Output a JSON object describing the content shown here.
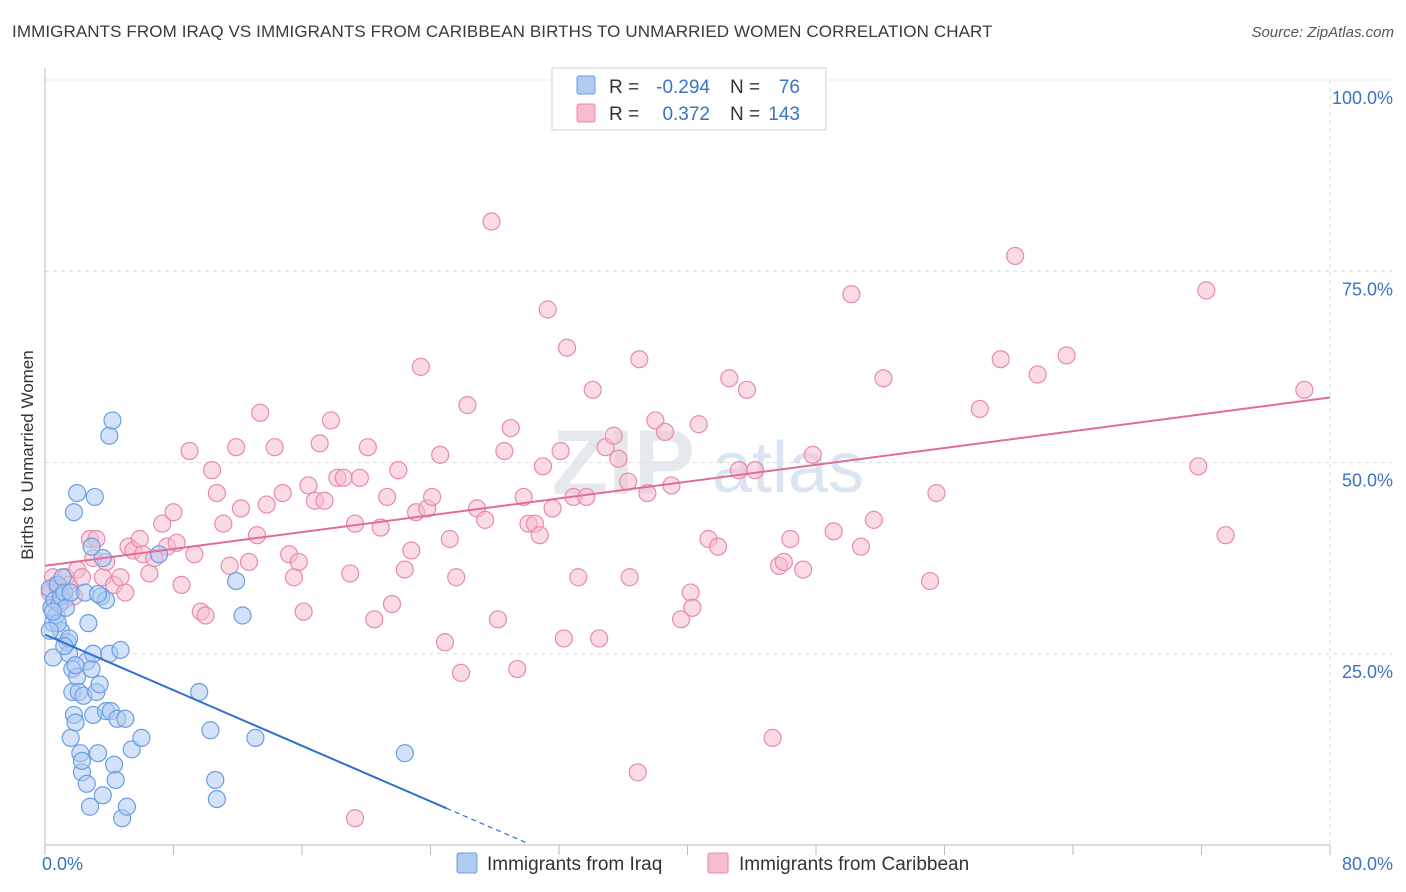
{
  "title": "IMMIGRANTS FROM IRAQ VS IMMIGRANTS FROM CARIBBEAN BIRTHS TO UNMARRIED WOMEN CORRELATION CHART",
  "source": "Source: ZipAtlas.com",
  "watermark": {
    "zip": "ZIP",
    "atlas": "atlas"
  },
  "colors": {
    "iraq_fill": "#aecbf2",
    "iraq_stroke": "#6a9ee0",
    "iraq_line": "#2f6fd0",
    "carib_fill": "#f6bcd0",
    "carib_stroke": "#e98aab",
    "carib_line": "#e06d97",
    "grid": "#dcdcdc",
    "tick_text": "#3a73c4"
  },
  "legend": {
    "rows": [
      {
        "r_label": "R =",
        "r_value": "-0.294",
        "n_label": "N =",
        "n_value": "76"
      },
      {
        "r_label": "R =",
        "r_value": "0.372",
        "n_label": "N =",
        "n_value": "143"
      }
    ]
  },
  "chart_data": {
    "type": "scatter",
    "title": "IMMIGRANTS FROM IRAQ VS IMMIGRANTS FROM CARIBBEAN BIRTHS TO UNMARRIED WOMEN CORRELATION CHART",
    "xlabel": "",
    "ylabel": "Births to Unmarried Women",
    "xlim": [
      0,
      80
    ],
    "ylim": [
      0,
      100
    ],
    "x_tick_labels": [
      "0.0%",
      "80.0%"
    ],
    "y_ticks": [
      25,
      50,
      75,
      100
    ],
    "y_tick_labels": [
      "25.0%",
      "50.0%",
      "75.0%",
      "100.0%"
    ],
    "grid": true,
    "legend_placement": "top-center",
    "series": [
      {
        "name": "Immigrants from Iraq",
        "r": -0.294,
        "n": 76,
        "trend": {
          "x0": 0,
          "y0": 27.5,
          "x1": 25,
          "y1": 4.8,
          "dash_to_x": 30
        },
        "points": [
          [
            0.3,
            33.5
          ],
          [
            0.4,
            31
          ],
          [
            0.5,
            29
          ],
          [
            0.5,
            24.5
          ],
          [
            0.6,
            32
          ],
          [
            0.7,
            30
          ],
          [
            0.8,
            34
          ],
          [
            0.9,
            31.5
          ],
          [
            1.0,
            28
          ],
          [
            1.0,
            32.5
          ],
          [
            1.1,
            35
          ],
          [
            1.2,
            33
          ],
          [
            1.3,
            31
          ],
          [
            1.4,
            26.5
          ],
          [
            1.5,
            25
          ],
          [
            1.5,
            27
          ],
          [
            1.6,
            33
          ],
          [
            1.6,
            14
          ],
          [
            1.7,
            23
          ],
          [
            1.7,
            20
          ],
          [
            1.8,
            43.5
          ],
          [
            1.8,
            17
          ],
          [
            1.9,
            16
          ],
          [
            2.0,
            22
          ],
          [
            2.0,
            46
          ],
          [
            2.1,
            20
          ],
          [
            2.2,
            12
          ],
          [
            2.3,
            9.5
          ],
          [
            2.3,
            11
          ],
          [
            2.4,
            19.5
          ],
          [
            2.5,
            33
          ],
          [
            2.6,
            24
          ],
          [
            2.6,
            8
          ],
          [
            2.7,
            29
          ],
          [
            2.8,
            5
          ],
          [
            2.9,
            23
          ],
          [
            3.0,
            17
          ],
          [
            3.0,
            25
          ],
          [
            3.1,
            45.5
          ],
          [
            3.2,
            20
          ],
          [
            3.3,
            12
          ],
          [
            3.4,
            21
          ],
          [
            3.5,
            32.5
          ],
          [
            3.6,
            6.5
          ],
          [
            3.6,
            37.5
          ],
          [
            3.8,
            32
          ],
          [
            3.8,
            17.5
          ],
          [
            4.0,
            53.5
          ],
          [
            4.0,
            25
          ],
          [
            4.1,
            17.5
          ],
          [
            4.2,
            55.5
          ],
          [
            4.3,
            10.5
          ],
          [
            4.4,
            8.5
          ],
          [
            4.5,
            16.5
          ],
          [
            4.7,
            25.5
          ],
          [
            4.8,
            3.5
          ],
          [
            5.0,
            16.5
          ],
          [
            5.1,
            5
          ],
          [
            5.4,
            12.5
          ],
          [
            6.0,
            14
          ],
          [
            7.1,
            38
          ],
          [
            9.6,
            20
          ],
          [
            10.3,
            15
          ],
          [
            10.6,
            8.5
          ],
          [
            10.7,
            6
          ],
          [
            11.9,
            34.5
          ],
          [
            12.3,
            30
          ],
          [
            13.1,
            14
          ],
          [
            22.4,
            12
          ],
          [
            0.8,
            29
          ],
          [
            1.2,
            26
          ],
          [
            2.9,
            39
          ],
          [
            0.5,
            30.5
          ],
          [
            1.9,
            23.5
          ],
          [
            3.3,
            32.8
          ],
          [
            0.3,
            28
          ]
        ]
      },
      {
        "name": "Immigrants from Caribbean",
        "r": 0.372,
        "n": 143,
        "trend": {
          "x0": 0,
          "y0": 36.5,
          "x1": 80,
          "y1": 58.5
        },
        "points": [
          [
            0.3,
            33
          ],
          [
            0.5,
            35
          ],
          [
            0.7,
            34
          ],
          [
            1.0,
            33.5
          ],
          [
            1.2,
            32
          ],
          [
            1.3,
            35
          ],
          [
            1.5,
            34
          ],
          [
            1.8,
            32.5
          ],
          [
            2.0,
            36
          ],
          [
            2.3,
            35
          ],
          [
            2.8,
            40
          ],
          [
            3.0,
            37.5
          ],
          [
            3.2,
            40
          ],
          [
            3.6,
            35
          ],
          [
            3.8,
            37
          ],
          [
            4.3,
            34
          ],
          [
            4.7,
            35
          ],
          [
            5.0,
            33
          ],
          [
            5.2,
            39
          ],
          [
            5.5,
            38.5
          ],
          [
            5.9,
            40
          ],
          [
            6.1,
            38
          ],
          [
            6.5,
            35.5
          ],
          [
            6.8,
            37.5
          ],
          [
            7.3,
            42
          ],
          [
            7.6,
            39
          ],
          [
            8.0,
            43.5
          ],
          [
            8.2,
            39.5
          ],
          [
            8.5,
            34
          ],
          [
            9.0,
            51.5
          ],
          [
            9.3,
            38
          ],
          [
            9.7,
            30.5
          ],
          [
            10.0,
            30
          ],
          [
            10.4,
            49
          ],
          [
            10.7,
            46
          ],
          [
            11.1,
            42
          ],
          [
            11.5,
            36.5
          ],
          [
            11.9,
            52
          ],
          [
            12.2,
            44
          ],
          [
            12.7,
            37
          ],
          [
            13.2,
            40.5
          ],
          [
            13.4,
            56.5
          ],
          [
            13.8,
            44.5
          ],
          [
            14.3,
            52
          ],
          [
            14.8,
            46
          ],
          [
            15.2,
            38
          ],
          [
            15.5,
            35
          ],
          [
            15.8,
            37
          ],
          [
            16.1,
            30.5
          ],
          [
            16.4,
            47
          ],
          [
            16.8,
            45
          ],
          [
            17.1,
            52.5
          ],
          [
            17.4,
            45
          ],
          [
            17.8,
            55.5
          ],
          [
            18.2,
            48
          ],
          [
            18.6,
            48
          ],
          [
            19.0,
            35.5
          ],
          [
            19.3,
            42
          ],
          [
            19.6,
            48
          ],
          [
            20.1,
            52
          ],
          [
            20.5,
            29.5
          ],
          [
            20.9,
            41.5
          ],
          [
            21.3,
            45.5
          ],
          [
            21.6,
            31.5
          ],
          [
            22.0,
            49
          ],
          [
            22.4,
            36
          ],
          [
            22.8,
            38.5
          ],
          [
            23.1,
            43.5
          ],
          [
            23.4,
            62.5
          ],
          [
            23.8,
            44
          ],
          [
            24.1,
            45.5
          ],
          [
            24.6,
            51
          ],
          [
            24.9,
            26.5
          ],
          [
            25.2,
            40
          ],
          [
            25.6,
            35
          ],
          [
            25.9,
            22.5
          ],
          [
            26.3,
            57.5
          ],
          [
            26.9,
            44
          ],
          [
            27.4,
            42.5
          ],
          [
            27.8,
            81.5
          ],
          [
            28.2,
            29.5
          ],
          [
            28.6,
            51.5
          ],
          [
            29.0,
            54.5
          ],
          [
            29.4,
            23
          ],
          [
            29.8,
            45.5
          ],
          [
            30.1,
            42
          ],
          [
            30.5,
            42
          ],
          [
            31.0,
            49.5
          ],
          [
            31.3,
            70
          ],
          [
            31.6,
            44
          ],
          [
            32.1,
            51.5
          ],
          [
            32.5,
            65
          ],
          [
            32.9,
            45.5
          ],
          [
            33.2,
            35
          ],
          [
            33.7,
            45.5
          ],
          [
            34.1,
            59.5
          ],
          [
            34.5,
            27
          ],
          [
            34.9,
            52
          ],
          [
            35.4,
            53.5
          ],
          [
            35.7,
            50.5
          ],
          [
            36.4,
            35
          ],
          [
            37.0,
            63.5
          ],
          [
            37.5,
            46
          ],
          [
            38.0,
            55.5
          ],
          [
            38.6,
            54
          ],
          [
            39.0,
            47
          ],
          [
            39.6,
            29.5
          ],
          [
            40.2,
            33
          ],
          [
            40.7,
            55
          ],
          [
            41.3,
            40
          ],
          [
            41.9,
            39
          ],
          [
            42.6,
            61
          ],
          [
            43.2,
            49
          ],
          [
            43.7,
            59.5
          ],
          [
            44.2,
            49
          ],
          [
            45.3,
            14
          ],
          [
            45.7,
            36.5
          ],
          [
            46.0,
            37
          ],
          [
            46.4,
            40
          ],
          [
            47.2,
            36
          ],
          [
            47.8,
            51
          ],
          [
            49.1,
            41
          ],
          [
            50.2,
            72
          ],
          [
            50.8,
            39
          ],
          [
            51.6,
            42.5
          ],
          [
            52.2,
            61
          ],
          [
            55.1,
            34.5
          ],
          [
            55.5,
            46
          ],
          [
            58.2,
            57
          ],
          [
            59.5,
            63.5
          ],
          [
            60.4,
            77
          ],
          [
            61.8,
            61.5
          ],
          [
            63.6,
            64
          ],
          [
            71.8,
            49.5
          ],
          [
            72.3,
            72.5
          ],
          [
            73.5,
            40.5
          ],
          [
            78.4,
            59.5
          ],
          [
            40.3,
            31
          ],
          [
            36.3,
            47.5
          ],
          [
            30.8,
            40.5
          ],
          [
            19.3,
            3.5
          ],
          [
            32.3,
            27
          ],
          [
            36.9,
            9.5
          ]
        ]
      }
    ]
  },
  "bottom_legend": {
    "items": [
      {
        "label": "Immigrants from Iraq"
      },
      {
        "label": "Immigrants from Caribbean"
      }
    ]
  }
}
